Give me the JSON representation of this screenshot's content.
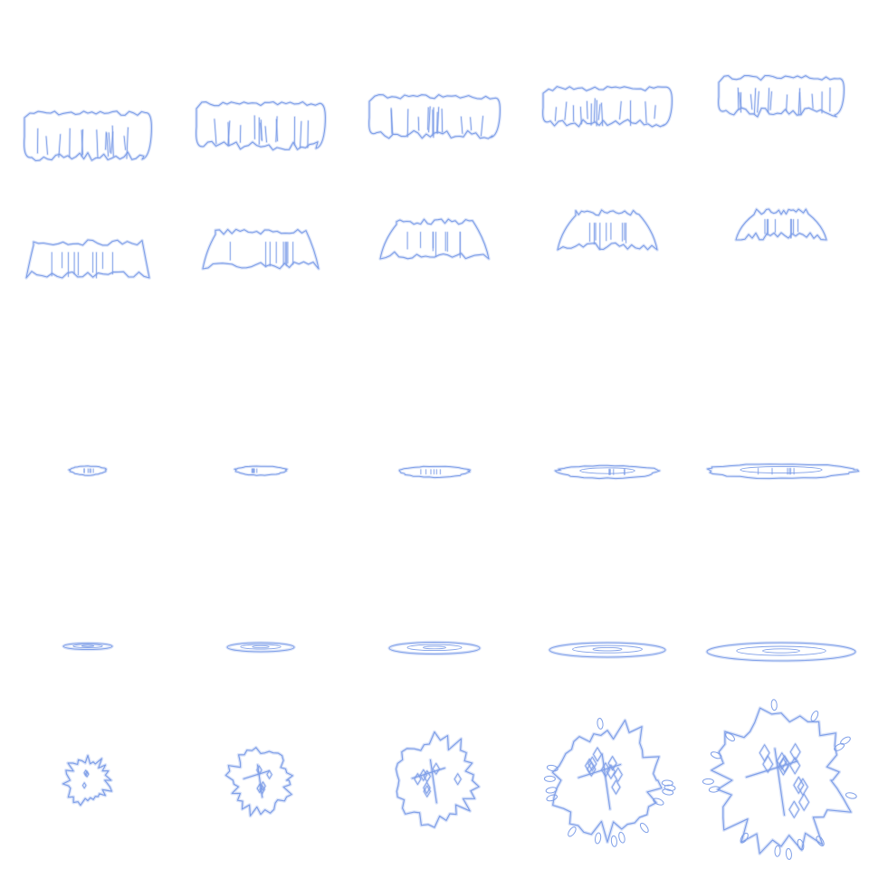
{
  "sheet": {
    "background": "#ffffff",
    "stroke_color": "#7f9fe8",
    "rows": 5,
    "columns": 5,
    "frame_count": 25
  },
  "animations": [
    {
      "name": "row-1",
      "shape": "rising-wave",
      "frames": 5
    },
    {
      "name": "row-2",
      "shape": "wave-mound",
      "frames": 5
    },
    {
      "name": "row-3",
      "shape": "expanding-splash-ring",
      "frames": 5
    },
    {
      "name": "row-4",
      "shape": "expanding-ripple-ring",
      "frames": 5
    },
    {
      "name": "row-5",
      "shape": "impact-burst",
      "frames": 5
    }
  ]
}
